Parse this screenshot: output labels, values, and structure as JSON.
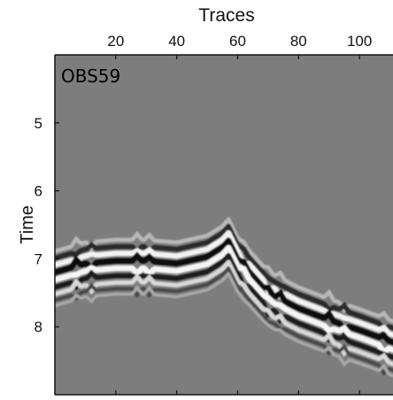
{
  "chart_data": {
    "type": "heatmap",
    "subtype": "seismic-gather",
    "panel_label": "OBS59",
    "xlabel": "Traces",
    "ylabel": "Time",
    "x_ticks": [
      20,
      40,
      60,
      80,
      100
    ],
    "y_ticks": [
      5,
      6,
      7,
      8
    ],
    "xlim": [
      0,
      111
    ],
    "ylim": [
      4.0,
      9.0
    ],
    "x_axis_position": "top",
    "y_axis_reversed": true,
    "colormap": "grayscale",
    "grid": false,
    "events": [
      {
        "name": "",
        "traces": [
          0,
          10,
          20,
          30,
          40,
          50,
          55,
          57
        ],
        "times": [
          7.15,
          7.02,
          6.98,
          6.98,
          7.02,
          6.92,
          6.78,
          6.68
        ]
      },
      {
        "name": "",
        "traces": [
          57,
          60,
          70,
          80,
          90,
          100,
          111
        ],
        "times": [
          6.68,
          6.95,
          7.45,
          7.68,
          7.85,
          8.0,
          8.18
        ]
      }
    ],
    "trace_disturbances": [
      7,
      12,
      27,
      31,
      62,
      70,
      74,
      90,
      95,
      108
    ]
  },
  "colors": {
    "background_gray": "#7d7d7d",
    "axis": "#111111"
  }
}
